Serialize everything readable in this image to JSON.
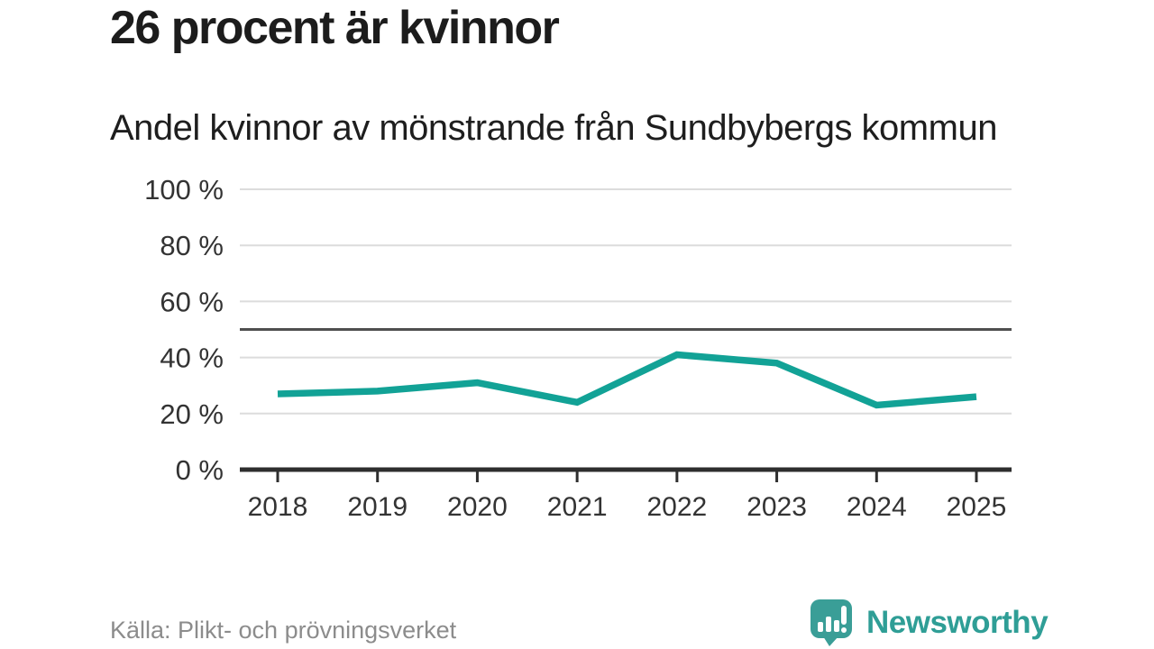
{
  "header": {
    "title": "26 procent är kvinnor",
    "subtitle": "Andel kvinnor av mönstrande från Sundbybergs kommun"
  },
  "chart_data": {
    "type": "line",
    "title": "26 procent är kvinnor",
    "subtitle": "Andel kvinnor av mönstrande från Sundbybergs kommun",
    "categories": [
      "2018",
      "2019",
      "2020",
      "2021",
      "2022",
      "2023",
      "2024",
      "2025"
    ],
    "values": [
      27,
      28,
      31,
      24,
      41,
      38,
      23,
      26
    ],
    "xlabel": "",
    "ylabel": "",
    "ylim": [
      0,
      100
    ],
    "yticks": [
      0,
      20,
      40,
      60,
      80,
      100
    ],
    "ytick_suffix": " %",
    "reference_line": 50,
    "grid": true,
    "legend": false,
    "line_color": "#12a296"
  },
  "footer": {
    "source": "Källa: Plikt- och prövningsverket",
    "brand": "Newsworthy"
  },
  "colors": {
    "accent_teal": "#12a296",
    "logo_teal": "#3a9e97",
    "grid_line": "#dcdcdc",
    "reference_line": "#4f4f4f",
    "axis_line": "#2e2e2e",
    "tick_label": "#333333",
    "text_dark": "#1c1c1c",
    "text_muted": "#8c8c8c"
  }
}
